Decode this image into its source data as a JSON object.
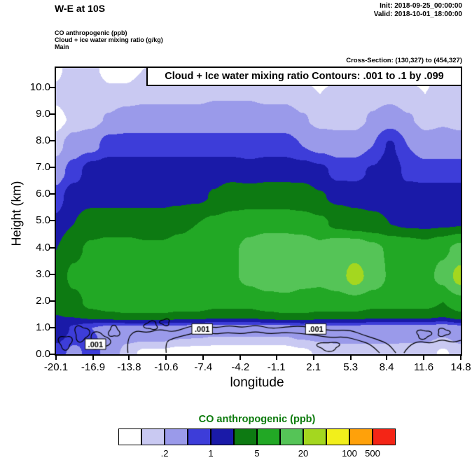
{
  "header": {
    "title": "W-E at 10S",
    "init_label": "Init: 2018-09-25_00:00:00",
    "valid_label": "Valid: 2018-10-01_18:00:00",
    "legend_line_1": "CO anthropogenic   (ppb)",
    "legend_line_2": "Cloud + ice water mixing ratio   (g/kg)",
    "legend_line_3": "Main",
    "cross_section": "Cross-Section: (130,327) to (454,327)"
  },
  "chart_data": {
    "type": "heatmap",
    "title": "W-E at 10S",
    "banner": "Cloud + Ice water mixing ratio Contours: .001 to .1 by .099",
    "xlabel": "longitude",
    "ylabel": "Height (km)",
    "xlim": [
      -20.1,
      14.8
    ],
    "ylim": [
      0,
      10.73
    ],
    "x_ticks": [
      "-20.1",
      "-16.9",
      "-13.8",
      "-10.6",
      "-7.4",
      "-4.2",
      "-1.1",
      "2.1",
      "5.3",
      "8.4",
      "11.6",
      "14.8"
    ],
    "y_ticks": [
      "0.0",
      "1.0",
      "2.0",
      "3.0",
      "4.0",
      "5.0",
      "6.0",
      "7.0",
      "8.0",
      "9.0",
      "10.0"
    ],
    "levels_ppb": [
      0.1,
      0.2,
      0.5,
      1,
      2,
      5,
      10,
      20,
      50,
      100,
      500
    ],
    "colors": [
      "#ffffff",
      "#c9c9f2",
      "#9a9aea",
      "#3d3dd9",
      "#1a1aa8",
      "#0d7a12",
      "#22a825",
      "#55c457",
      "#a4d71f",
      "#f2ef1b",
      "#ffa10a",
      "#f42516"
    ],
    "grid": {
      "note": "CO anthropogenic (ppb), coarse field, rows bottom-to-top",
      "nx": 24,
      "ny": 12,
      "values_ppb": [
        [
          0.7,
          0.35,
          0.7,
          0.3,
          0.15,
          0.07,
          0.07,
          0.05,
          0.05,
          0.05,
          0.05,
          0.05,
          0.05,
          0.05,
          0.07,
          0.12,
          0.15,
          0.15,
          0.15,
          0.15,
          0.15,
          0.15,
          0.08,
          0.15
        ],
        [
          1.5,
          0.9,
          0.5,
          0.35,
          0.3,
          0.35,
          0.35,
          0.3,
          0.28,
          0.25,
          0.25,
          0.25,
          0.25,
          0.25,
          0.3,
          0.3,
          0.3,
          0.3,
          0.3,
          0.3,
          0.28,
          0.28,
          0.25,
          0.3
        ],
        [
          2.5,
          4,
          6,
          7,
          8,
          8,
          8,
          7,
          7,
          6,
          6,
          6,
          7,
          8,
          8,
          7,
          7,
          7,
          6,
          6,
          6,
          6,
          5,
          7
        ],
        [
          3,
          6,
          8,
          9,
          9,
          8,
          8,
          8,
          8,
          8,
          9,
          12,
          15,
          15,
          12,
          12,
          15,
          25,
          15,
          9,
          8,
          8,
          12,
          25
        ],
        [
          2,
          4,
          6,
          7,
          7,
          6,
          6,
          7,
          8,
          8,
          9,
          12,
          15,
          15,
          15,
          12,
          15,
          15,
          12,
          9,
          8,
          7,
          9,
          12
        ],
        [
          1.2,
          2,
          3,
          3,
          3,
          3,
          3,
          4,
          5,
          6,
          7,
          8,
          8,
          8,
          7,
          6,
          4,
          3,
          2.5,
          2,
          1.6,
          1.5,
          1.6,
          1.8
        ],
        [
          0.7,
          1.5,
          1.5,
          1.5,
          1.5,
          1.5,
          1.5,
          1.5,
          1.6,
          2.2,
          3,
          3,
          3,
          3,
          3,
          2.2,
          1.6,
          1.5,
          1.5,
          1.5,
          1.5,
          1.5,
          1.5,
          1.5
        ],
        [
          0.3,
          0.7,
          1.4,
          1.5,
          1.5,
          1.5,
          1.5,
          1.5,
          1.5,
          1.5,
          1.5,
          1.3,
          1.5,
          1.5,
          1.4,
          1.2,
          0.8,
          0.8,
          1.1,
          1.5,
          0.8,
          0.7,
          0.7,
          0.7
        ],
        [
          0.15,
          0.3,
          0.35,
          0.7,
          0.7,
          0.7,
          0.7,
          0.7,
          0.7,
          0.7,
          0.7,
          0.7,
          0.7,
          0.7,
          0.5,
          0.35,
          0.3,
          0.3,
          0.5,
          1.1,
          0.5,
          0.3,
          0.3,
          0.3
        ],
        [
          0.07,
          0.12,
          0.15,
          0.22,
          0.3,
          0.3,
          0.3,
          0.3,
          0.3,
          0.3,
          0.3,
          0.3,
          0.3,
          0.3,
          0.22,
          0.15,
          0.15,
          0.15,
          0.22,
          0.3,
          0.22,
          0.15,
          0.18,
          0.15
        ],
        [
          0.12,
          0.18,
          0.15,
          0.12,
          0.12,
          0.15,
          0.15,
          0.15,
          0.15,
          0.18,
          0.18,
          0.18,
          0.15,
          0.15,
          0.12,
          0.1,
          0.12,
          0.15,
          0.15,
          0.15,
          0.12,
          0.1,
          0.15,
          0.12
        ],
        [
          0.08,
          0.15,
          0.12,
          0.07,
          0.07,
          0.1,
          0.12,
          0.12,
          0.1,
          0.12,
          0.12,
          0.1,
          0.08,
          0.07,
          0.07,
          0.07,
          0.07,
          0.1,
          0.12,
          0.1,
          0.07,
          0.07,
          0.1,
          0.07
        ]
      ]
    },
    "cloud_contours": {
      "levels": [
        0.001,
        0.1
      ],
      "polylines": [
        [
          [
            -13.9,
            0.05
          ],
          [
            -14.0,
            0.55
          ],
          [
            -13.3,
            0.9
          ],
          [
            -12.2,
            0.8
          ],
          [
            -11.2,
            0.95
          ],
          [
            -10.0,
            0.82
          ],
          [
            -8.8,
            1.02
          ],
          [
            -7.6,
            1.12
          ],
          [
            -6.4,
            0.98
          ],
          [
            -5.2,
            1.08
          ],
          [
            -4.0,
            1.0
          ],
          [
            -2.8,
            1.1
          ],
          [
            -1.6,
            0.96
          ],
          [
            -0.3,
            1.02
          ],
          [
            1.0,
            1.06
          ],
          [
            2.4,
            0.96
          ],
          [
            3.8,
            0.88
          ],
          [
            5.2,
            0.92
          ],
          [
            6.4,
            0.72
          ],
          [
            7.6,
            0.56
          ],
          [
            8.6,
            0.38
          ],
          [
            9.2,
            0.05
          ]
        ],
        [
          [
            -10.6,
            0.05
          ],
          [
            -10.7,
            0.45
          ],
          [
            -10.0,
            0.6
          ],
          [
            -8.9,
            0.72
          ],
          [
            -7.7,
            0.85
          ],
          [
            -6.5,
            0.75
          ],
          [
            -5.3,
            0.82
          ],
          [
            -4.1,
            0.76
          ],
          [
            -2.9,
            0.86
          ],
          [
            -1.7,
            0.76
          ],
          [
            -0.4,
            0.82
          ],
          [
            0.9,
            0.78
          ],
          [
            2.2,
            0.72
          ],
          [
            3.5,
            0.62
          ],
          [
            4.8,
            0.66
          ],
          [
            6.0,
            0.52
          ],
          [
            7.0,
            0.38
          ],
          [
            7.8,
            0.05
          ]
        ],
        [
          [
            9.9,
            0.05
          ],
          [
            10.3,
            0.32
          ],
          [
            11.2,
            0.5
          ],
          [
            12.2,
            0.4
          ],
          [
            13.1,
            0.56
          ],
          [
            14.1,
            0.44
          ],
          [
            14.8,
            0.52
          ]
        ]
      ],
      "blobs": [
        {
          "cx": -19.3,
          "cy": 0.45,
          "rx": 0.55,
          "ry": 0.25,
          "ph": 0
        },
        {
          "cx": -17.9,
          "cy": 0.78,
          "rx": 0.6,
          "ry": 0.28,
          "ph": 1
        },
        {
          "cx": -16.4,
          "cy": 0.5,
          "rx": 0.85,
          "ry": 0.3,
          "ph": 2
        },
        {
          "cx": -15.1,
          "cy": 0.85,
          "rx": 0.45,
          "ry": 0.2,
          "ph": 3
        },
        {
          "cx": -11.9,
          "cy": 1.08,
          "rx": 0.55,
          "ry": 0.15,
          "ph": 4
        },
        {
          "cx": -10.7,
          "cy": 1.2,
          "rx": 0.4,
          "ry": 0.12,
          "ph": 5
        },
        {
          "cx": 3.4,
          "cy": 0.3,
          "rx": 0.9,
          "ry": 0.16,
          "ph": 6
        },
        {
          "cx": 11.6,
          "cy": 0.75,
          "rx": 0.6,
          "ry": 0.16,
          "ph": 7
        },
        {
          "cx": 13.3,
          "cy": 0.82,
          "rx": 0.5,
          "ry": 0.14,
          "ph": 8
        }
      ],
      "labels": [
        {
          "x": -16.7,
          "y": 0.38,
          "text": ".001"
        },
        {
          "x": -7.5,
          "y": 0.95,
          "text": ".001"
        },
        {
          "x": 2.3,
          "y": 0.95,
          "text": ".001"
        }
      ]
    },
    "colorbar": {
      "title": "CO anthropogenic  (ppb)",
      "title_color": "#0b7a0b",
      "tick_labels": [
        ".2",
        "1",
        "5",
        "20",
        "100",
        "500"
      ],
      "tick_edge_index": [
        2,
        4,
        6,
        8,
        10,
        11
      ]
    }
  }
}
